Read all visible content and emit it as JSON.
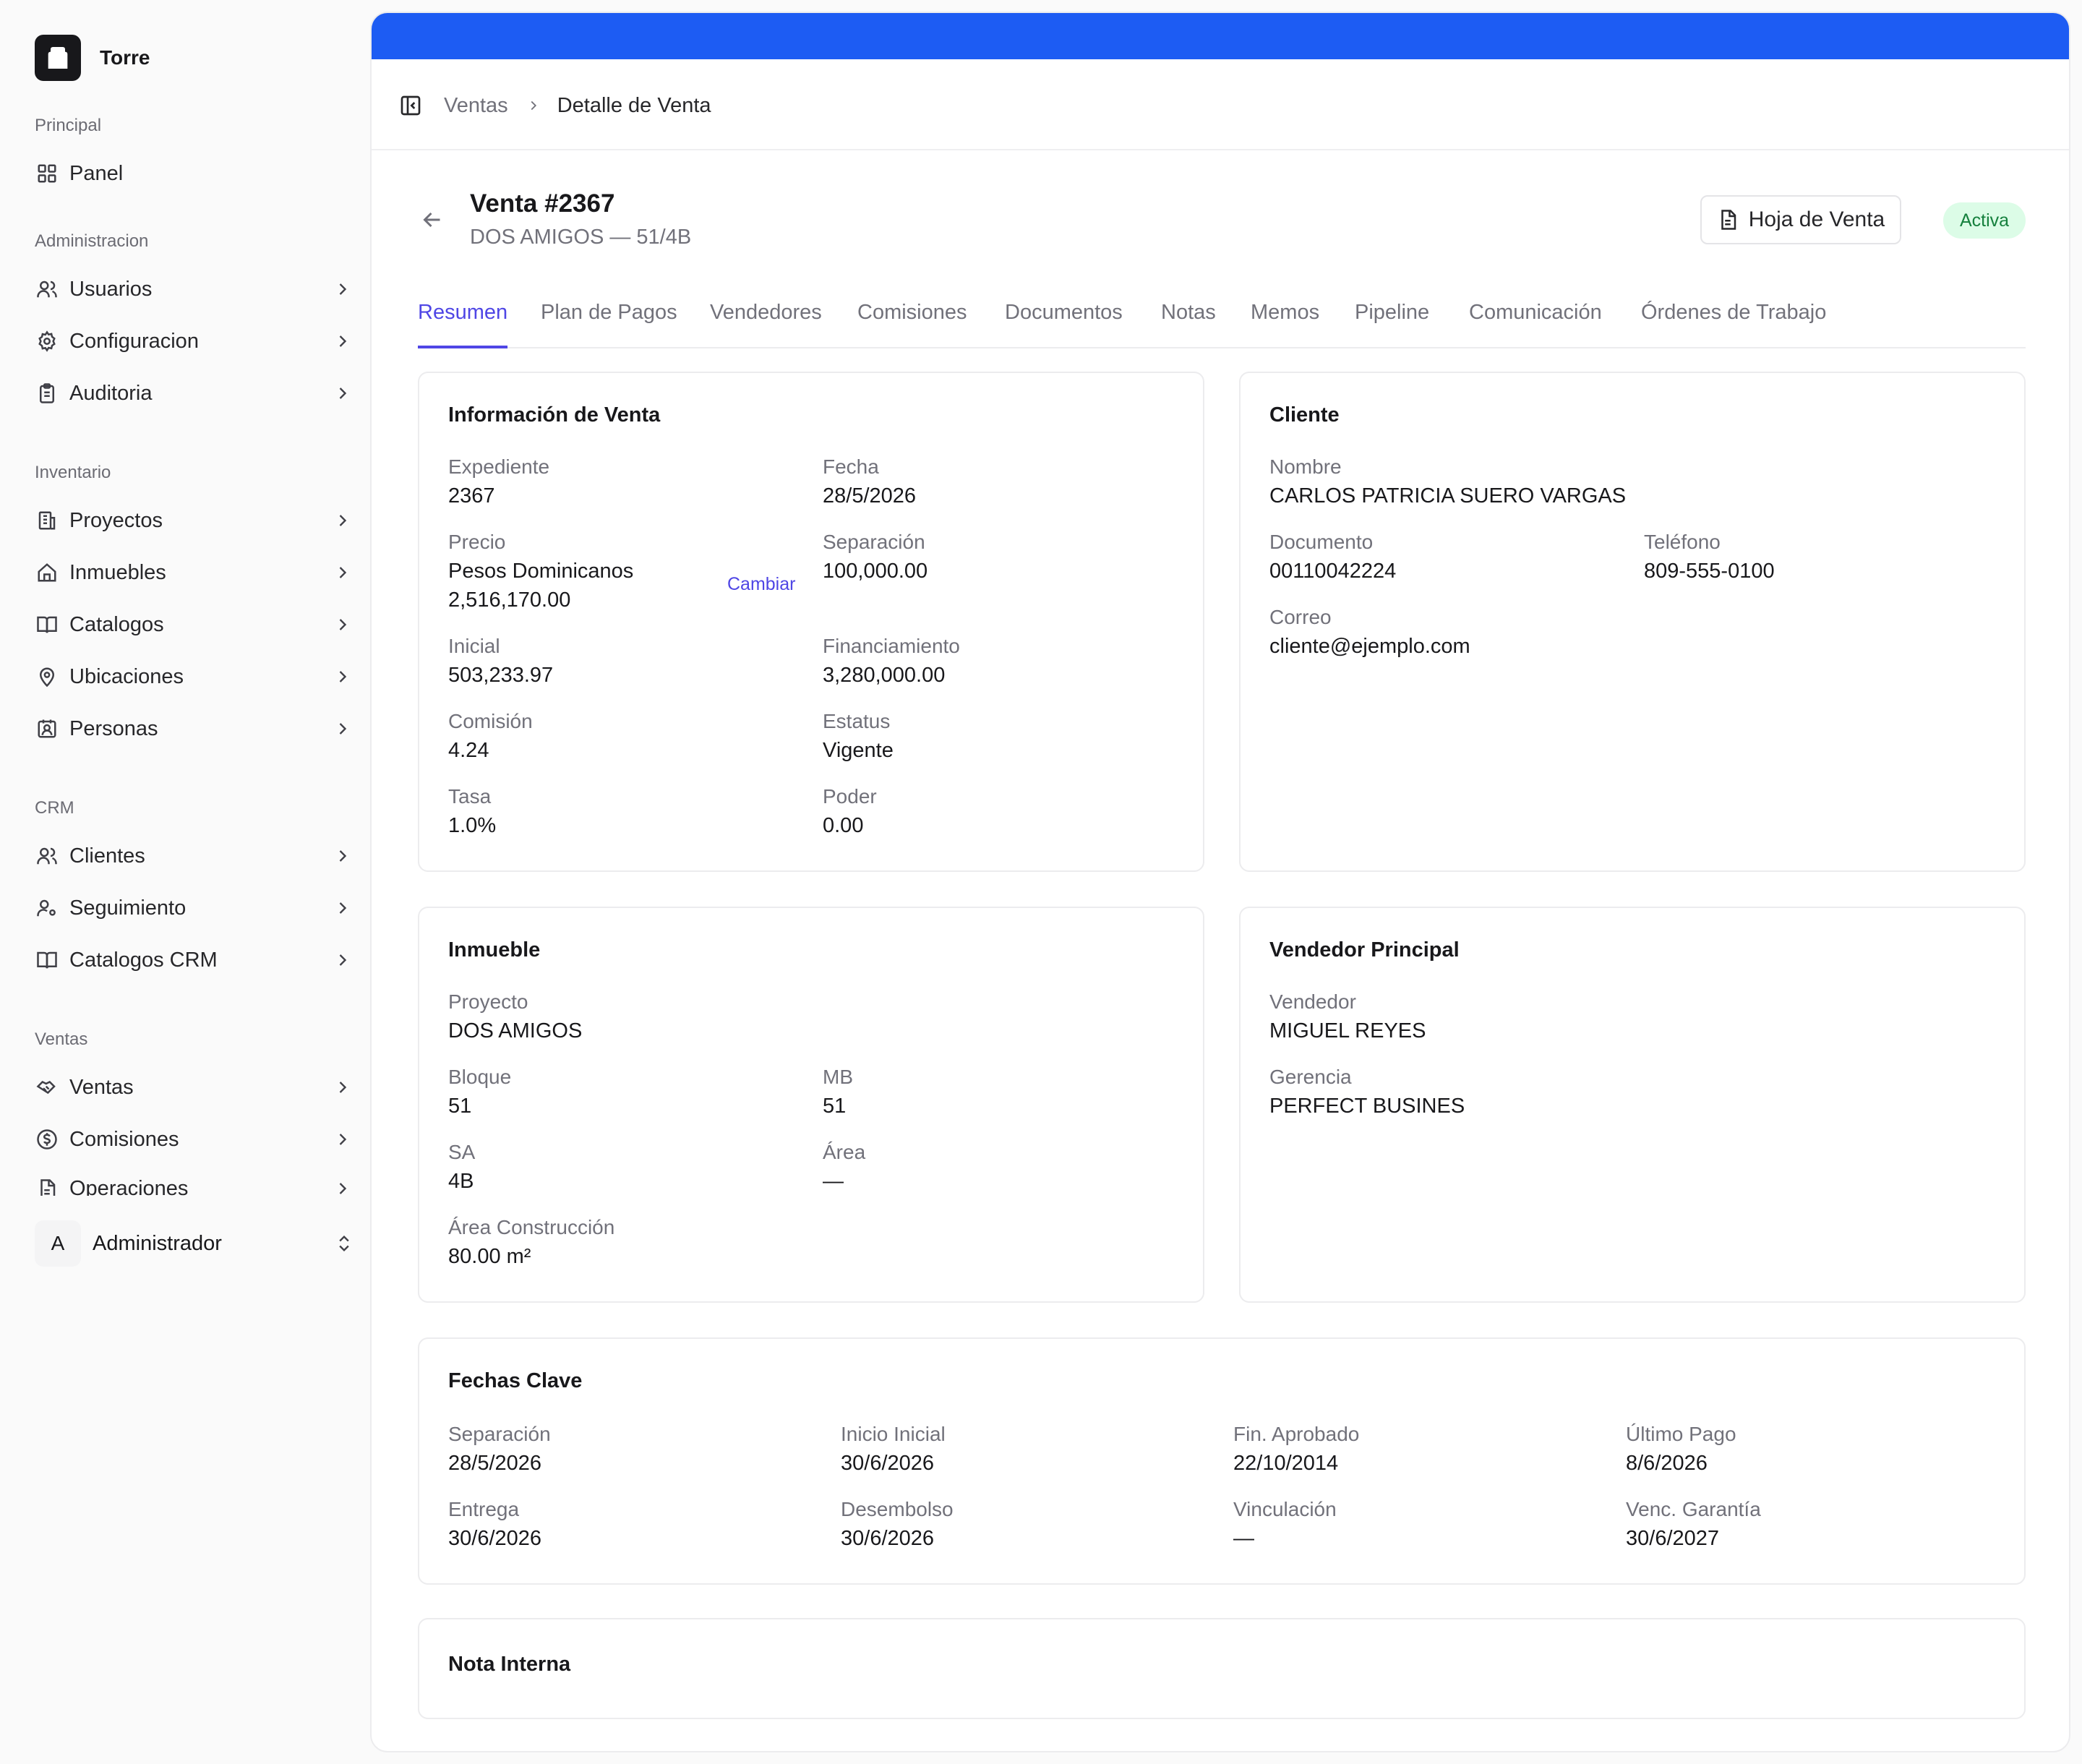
{
  "brand": {
    "name": "Torre"
  },
  "sidebar": {
    "groups": [
      {
        "label": "Principal",
        "items": [
          {
            "label": "Panel",
            "icon": "grid-icon"
          }
        ]
      },
      {
        "label": "Administracion",
        "items": [
          {
            "label": "Usuarios",
            "icon": "users-icon"
          },
          {
            "label": "Configuracion",
            "icon": "gear-icon"
          },
          {
            "label": "Auditoria",
            "icon": "clipboard-icon"
          }
        ]
      },
      {
        "label": "Inventario",
        "items": [
          {
            "label": "Proyectos",
            "icon": "building-icon"
          },
          {
            "label": "Inmuebles",
            "icon": "home-icon"
          },
          {
            "label": "Catalogos",
            "icon": "book-icon"
          },
          {
            "label": "Ubicaciones",
            "icon": "map-pin-icon"
          },
          {
            "label": "Personas",
            "icon": "contact-icon"
          }
        ]
      },
      {
        "label": "CRM",
        "items": [
          {
            "label": "Clientes",
            "icon": "users-icon"
          },
          {
            "label": "Seguimiento",
            "icon": "user-cog-icon"
          },
          {
            "label": "Catalogos CRM",
            "icon": "book-icon"
          }
        ]
      },
      {
        "label": "Ventas",
        "items": [
          {
            "label": "Ventas",
            "icon": "handshake-icon"
          },
          {
            "label": "Comisiones",
            "icon": "dollar-circle-icon"
          },
          {
            "label": "Operaciones",
            "icon": "file-icon"
          }
        ]
      }
    ],
    "user": {
      "initial": "A",
      "name": "Administrador"
    }
  },
  "breadcrumb": {
    "parent": "Ventas",
    "current": "Detalle de Venta"
  },
  "header": {
    "title": "Venta #2367",
    "subtitle": "DOS AMIGOS — 51/4B",
    "sheet_button": "Hoja de Venta",
    "status": "Activa"
  },
  "tabs": [
    "Resumen",
    "Plan de Pagos",
    "Vendedores",
    "Comisiones",
    "Documentos",
    "Notas",
    "Memos",
    "Pipeline",
    "Comunicación",
    "Órdenes de Trabajo"
  ],
  "sale_info": {
    "title": "Información de Venta",
    "expediente": {
      "label": "Expediente",
      "value": "2367"
    },
    "fecha": {
      "label": "Fecha",
      "value": "28/5/2026"
    },
    "precio": {
      "label": "Precio",
      "currency": "Pesos Dominicanos",
      "value": "2,516,170.00",
      "change": "Cambiar"
    },
    "separacion": {
      "label": "Separación",
      "value": "100,000.00"
    },
    "inicial": {
      "label": "Inicial",
      "value": "503,233.97"
    },
    "financiamiento": {
      "label": "Financiamiento",
      "value": "3,280,000.00"
    },
    "comision": {
      "label": "Comisión",
      "value": "4.24"
    },
    "estatus": {
      "label": "Estatus",
      "value": "Vigente"
    },
    "tasa": {
      "label": "Tasa",
      "value": "1.0%"
    },
    "poder": {
      "label": "Poder",
      "value": "0.00"
    }
  },
  "client": {
    "title": "Cliente",
    "nombre": {
      "label": "Nombre",
      "value": "CARLOS PATRICIA SUERO VARGAS"
    },
    "documento": {
      "label": "Documento",
      "value": "00110042224"
    },
    "telefono": {
      "label": "Teléfono",
      "value": "809-555-0100"
    },
    "correo": {
      "label": "Correo",
      "value": "cliente@ejemplo.com"
    }
  },
  "property": {
    "title": "Inmueble",
    "proyecto": {
      "label": "Proyecto",
      "value": "DOS AMIGOS"
    },
    "bloque": {
      "label": "Bloque",
      "value": "51"
    },
    "mb": {
      "label": "MB",
      "value": "51"
    },
    "sa": {
      "label": "SA",
      "value": "4B"
    },
    "area": {
      "label": "Área",
      "value": "—"
    },
    "area_construccion": {
      "label": "Área Construcción",
      "value": "80.00 m²"
    }
  },
  "seller": {
    "title": "Vendedor Principal",
    "vendedor": {
      "label": "Vendedor",
      "value": "MIGUEL REYES"
    },
    "gerencia": {
      "label": "Gerencia",
      "value": "PERFECT BUSINES"
    }
  },
  "dates": {
    "title": "Fechas Clave",
    "items": [
      {
        "label": "Separación",
        "value": "28/5/2026"
      },
      {
        "label": "Inicio Inicial",
        "value": "30/6/2026"
      },
      {
        "label": "Fin. Aprobado",
        "value": "22/10/2014"
      },
      {
        "label": "Último Pago",
        "value": "8/6/2026"
      },
      {
        "label": "Entrega",
        "value": "30/6/2026"
      },
      {
        "label": "Desembolso",
        "value": "30/6/2026"
      },
      {
        "label": "Vinculación",
        "value": "—"
      },
      {
        "label": "Venc. Garantía",
        "value": "30/6/2027"
      }
    ]
  },
  "note": {
    "title": "Nota Interna"
  },
  "colors": {
    "accent": "#4f46e5",
    "topbar": "#1d5cf3",
    "badge_bg": "#dcfce7",
    "badge_text": "#15803d"
  }
}
